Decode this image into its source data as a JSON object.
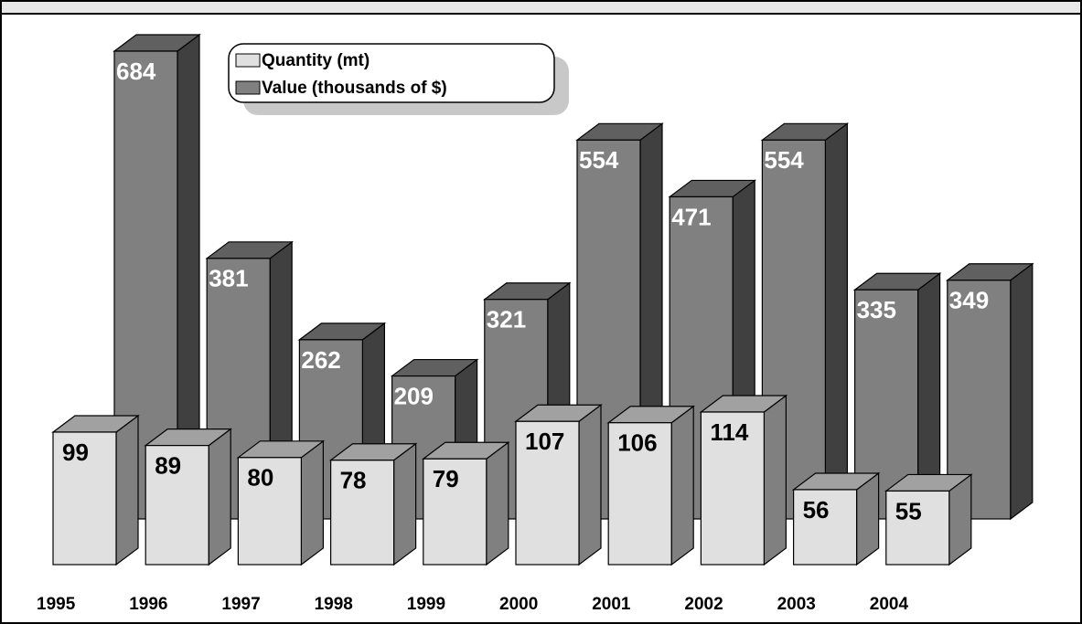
{
  "chart_data": {
    "type": "bar3d",
    "categories": [
      "1995",
      "1996",
      "1997",
      "1998",
      "1999",
      "2000",
      "2001",
      "2002",
      "2003",
      "2004"
    ],
    "series": [
      {
        "name": "Quantity (mt)",
        "color": "#e0e0e0",
        "values": [
          99,
          89,
          80,
          78,
          79,
          107,
          106,
          114,
          56,
          55
        ]
      },
      {
        "name": "Value (thousands of $)",
        "color": "#808080",
        "values": [
          684,
          381,
          262,
          209,
          321,
          554,
          471,
          554,
          335,
          349
        ]
      }
    ]
  }
}
